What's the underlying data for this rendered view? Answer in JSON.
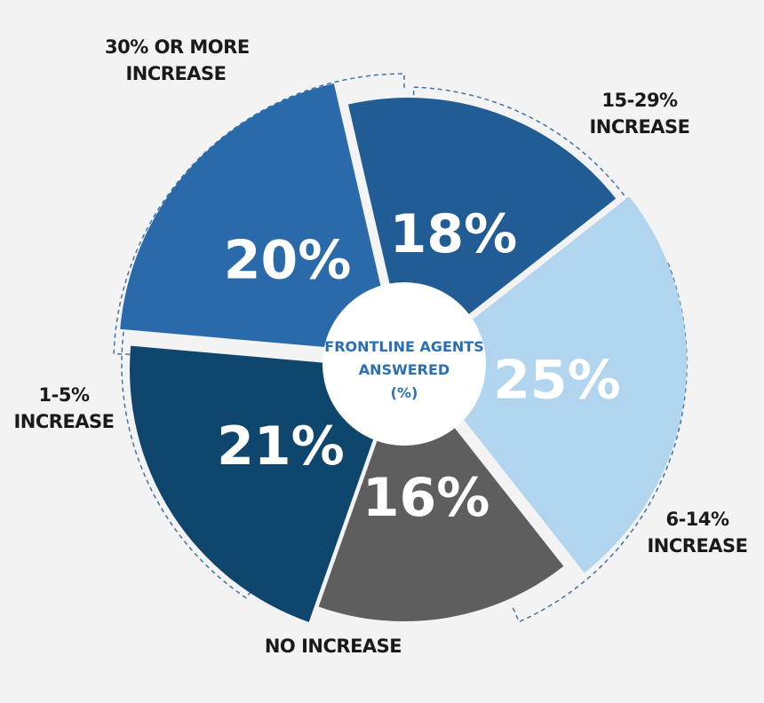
{
  "center": {
    "line1": "FRONTLINE AGENTS",
    "line2": "ANSWERED",
    "line3": "(%)"
  },
  "colors": {
    "thirty_plus": "#2a6aaa",
    "fifteen_29": "#215d94",
    "six_14": "#b1d5ee",
    "no_increase": "#5e5e5e",
    "one_5": "#0e466d",
    "dash": "#3f74a6",
    "text_dark": "#1a1a1a",
    "center_text": "#2a6fb5"
  },
  "chart_data": {
    "type": "pie",
    "title": "FRONTLINE AGENTS ANSWERED (%)",
    "slices": [
      {
        "label": "30% OR MORE INCREASE",
        "lines": [
          "30% OR MORE",
          "INCREASE"
        ],
        "value": 20,
        "display": "20%",
        "color": "#2a6aaa"
      },
      {
        "label": "15-29% INCREASE",
        "lines": [
          "15-29%",
          "INCREASE"
        ],
        "value": 18,
        "display": "18%",
        "color": "#215d94"
      },
      {
        "label": "6-14% INCREASE",
        "lines": [
          "6-14%",
          "INCREASE"
        ],
        "value": 25,
        "display": "25%",
        "color": "#b1d5ee"
      },
      {
        "label": "NO INCREASE",
        "lines": [
          "NO INCREASE"
        ],
        "value": 16,
        "display": "16%",
        "color": "#5e5e5e"
      },
      {
        "label": "1-5% INCREASE",
        "lines": [
          "1-5%",
          "INCREASE"
        ],
        "value": 21,
        "display": "21%",
        "color": "#0e466d"
      }
    ]
  }
}
